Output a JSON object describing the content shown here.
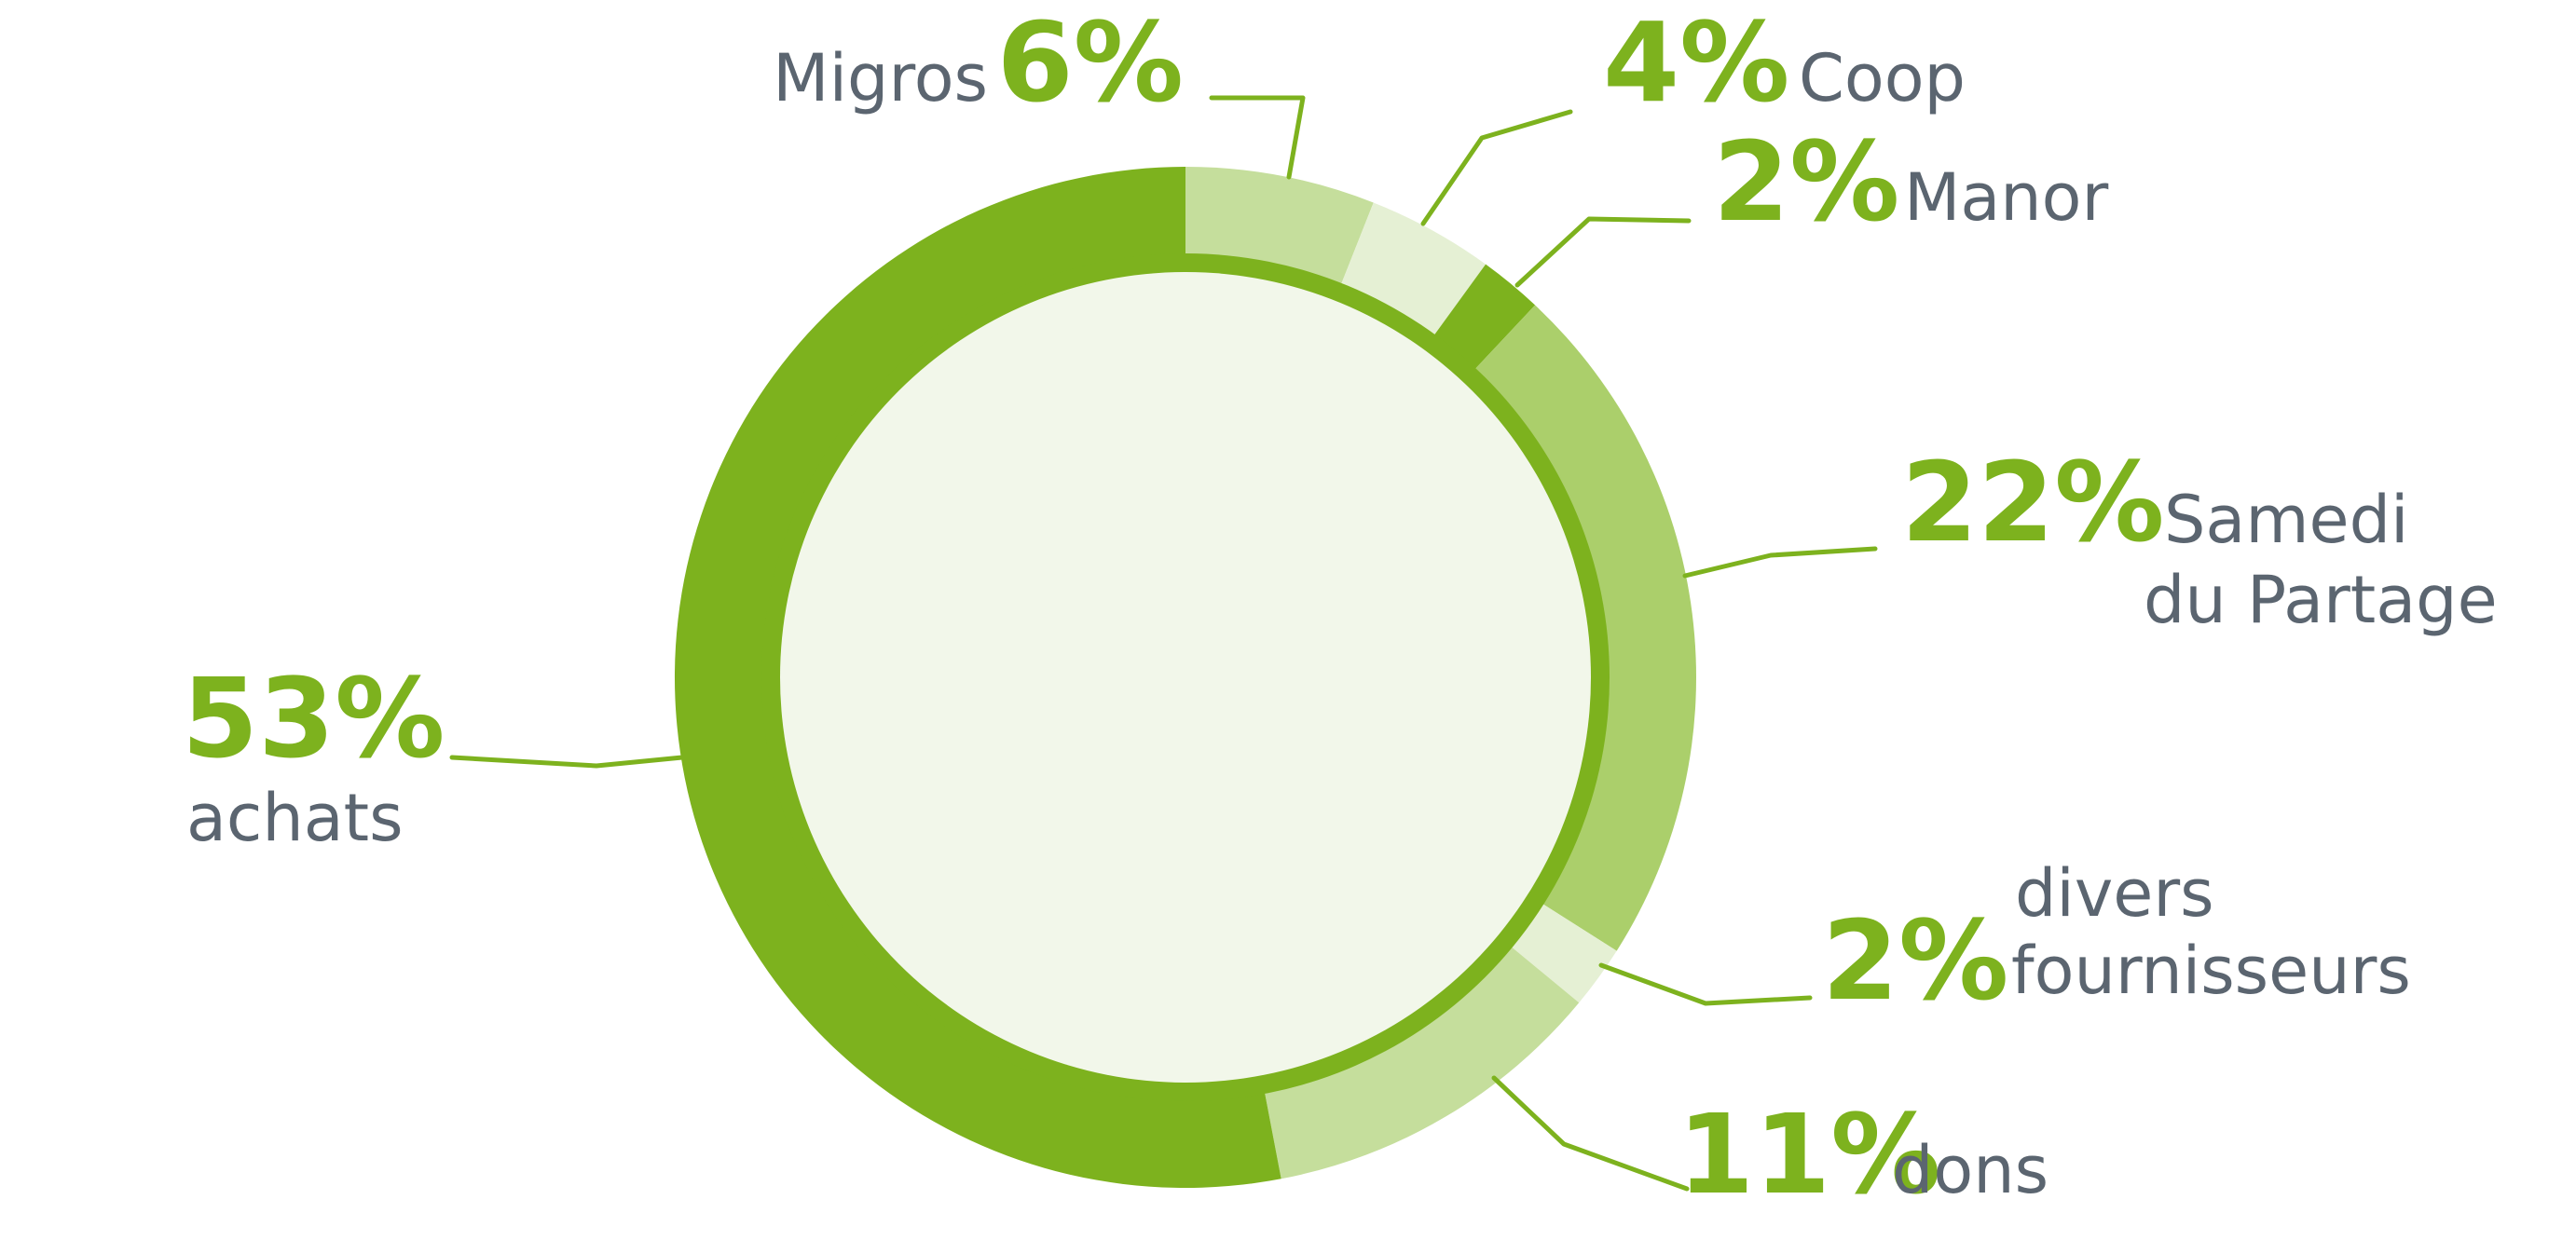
{
  "chart_data": {
    "type": "pie",
    "donut": true,
    "slices": [
      {
        "key": "migros",
        "pct": "6%",
        "value": 6,
        "label_lines": [
          "Migros"
        ],
        "color": "#c5de9c"
      },
      {
        "key": "coop",
        "pct": "4%",
        "value": 4,
        "label_lines": [
          "Coop"
        ],
        "color": "#e5f0d4"
      },
      {
        "key": "manor",
        "pct": "2%",
        "value": 2,
        "label_lines": [
          "Manor"
        ],
        "color": "#7db21e"
      },
      {
        "key": "samedi",
        "pct": "22%",
        "value": 22,
        "label_lines": [
          "Samedi",
          "du Partage"
        ],
        "color": "#abcf6b"
      },
      {
        "key": "divers",
        "pct": "2%",
        "value": 2,
        "label_lines": [
          "divers",
          "fournisseurs"
        ],
        "color": "#e5f0d4"
      },
      {
        "key": "dons",
        "pct": "11%",
        "value": 11,
        "label_lines": [
          "dons"
        ],
        "color": "#c5de9c"
      },
      {
        "key": "achats",
        "pct": "53%",
        "value": 53,
        "label_lines": [
          "achats"
        ],
        "color": "#7db21e"
      }
    ],
    "colors": {
      "accent": "#7db21e",
      "label_text": "#5b6570",
      "center_fill": "#f2f7ea"
    }
  }
}
